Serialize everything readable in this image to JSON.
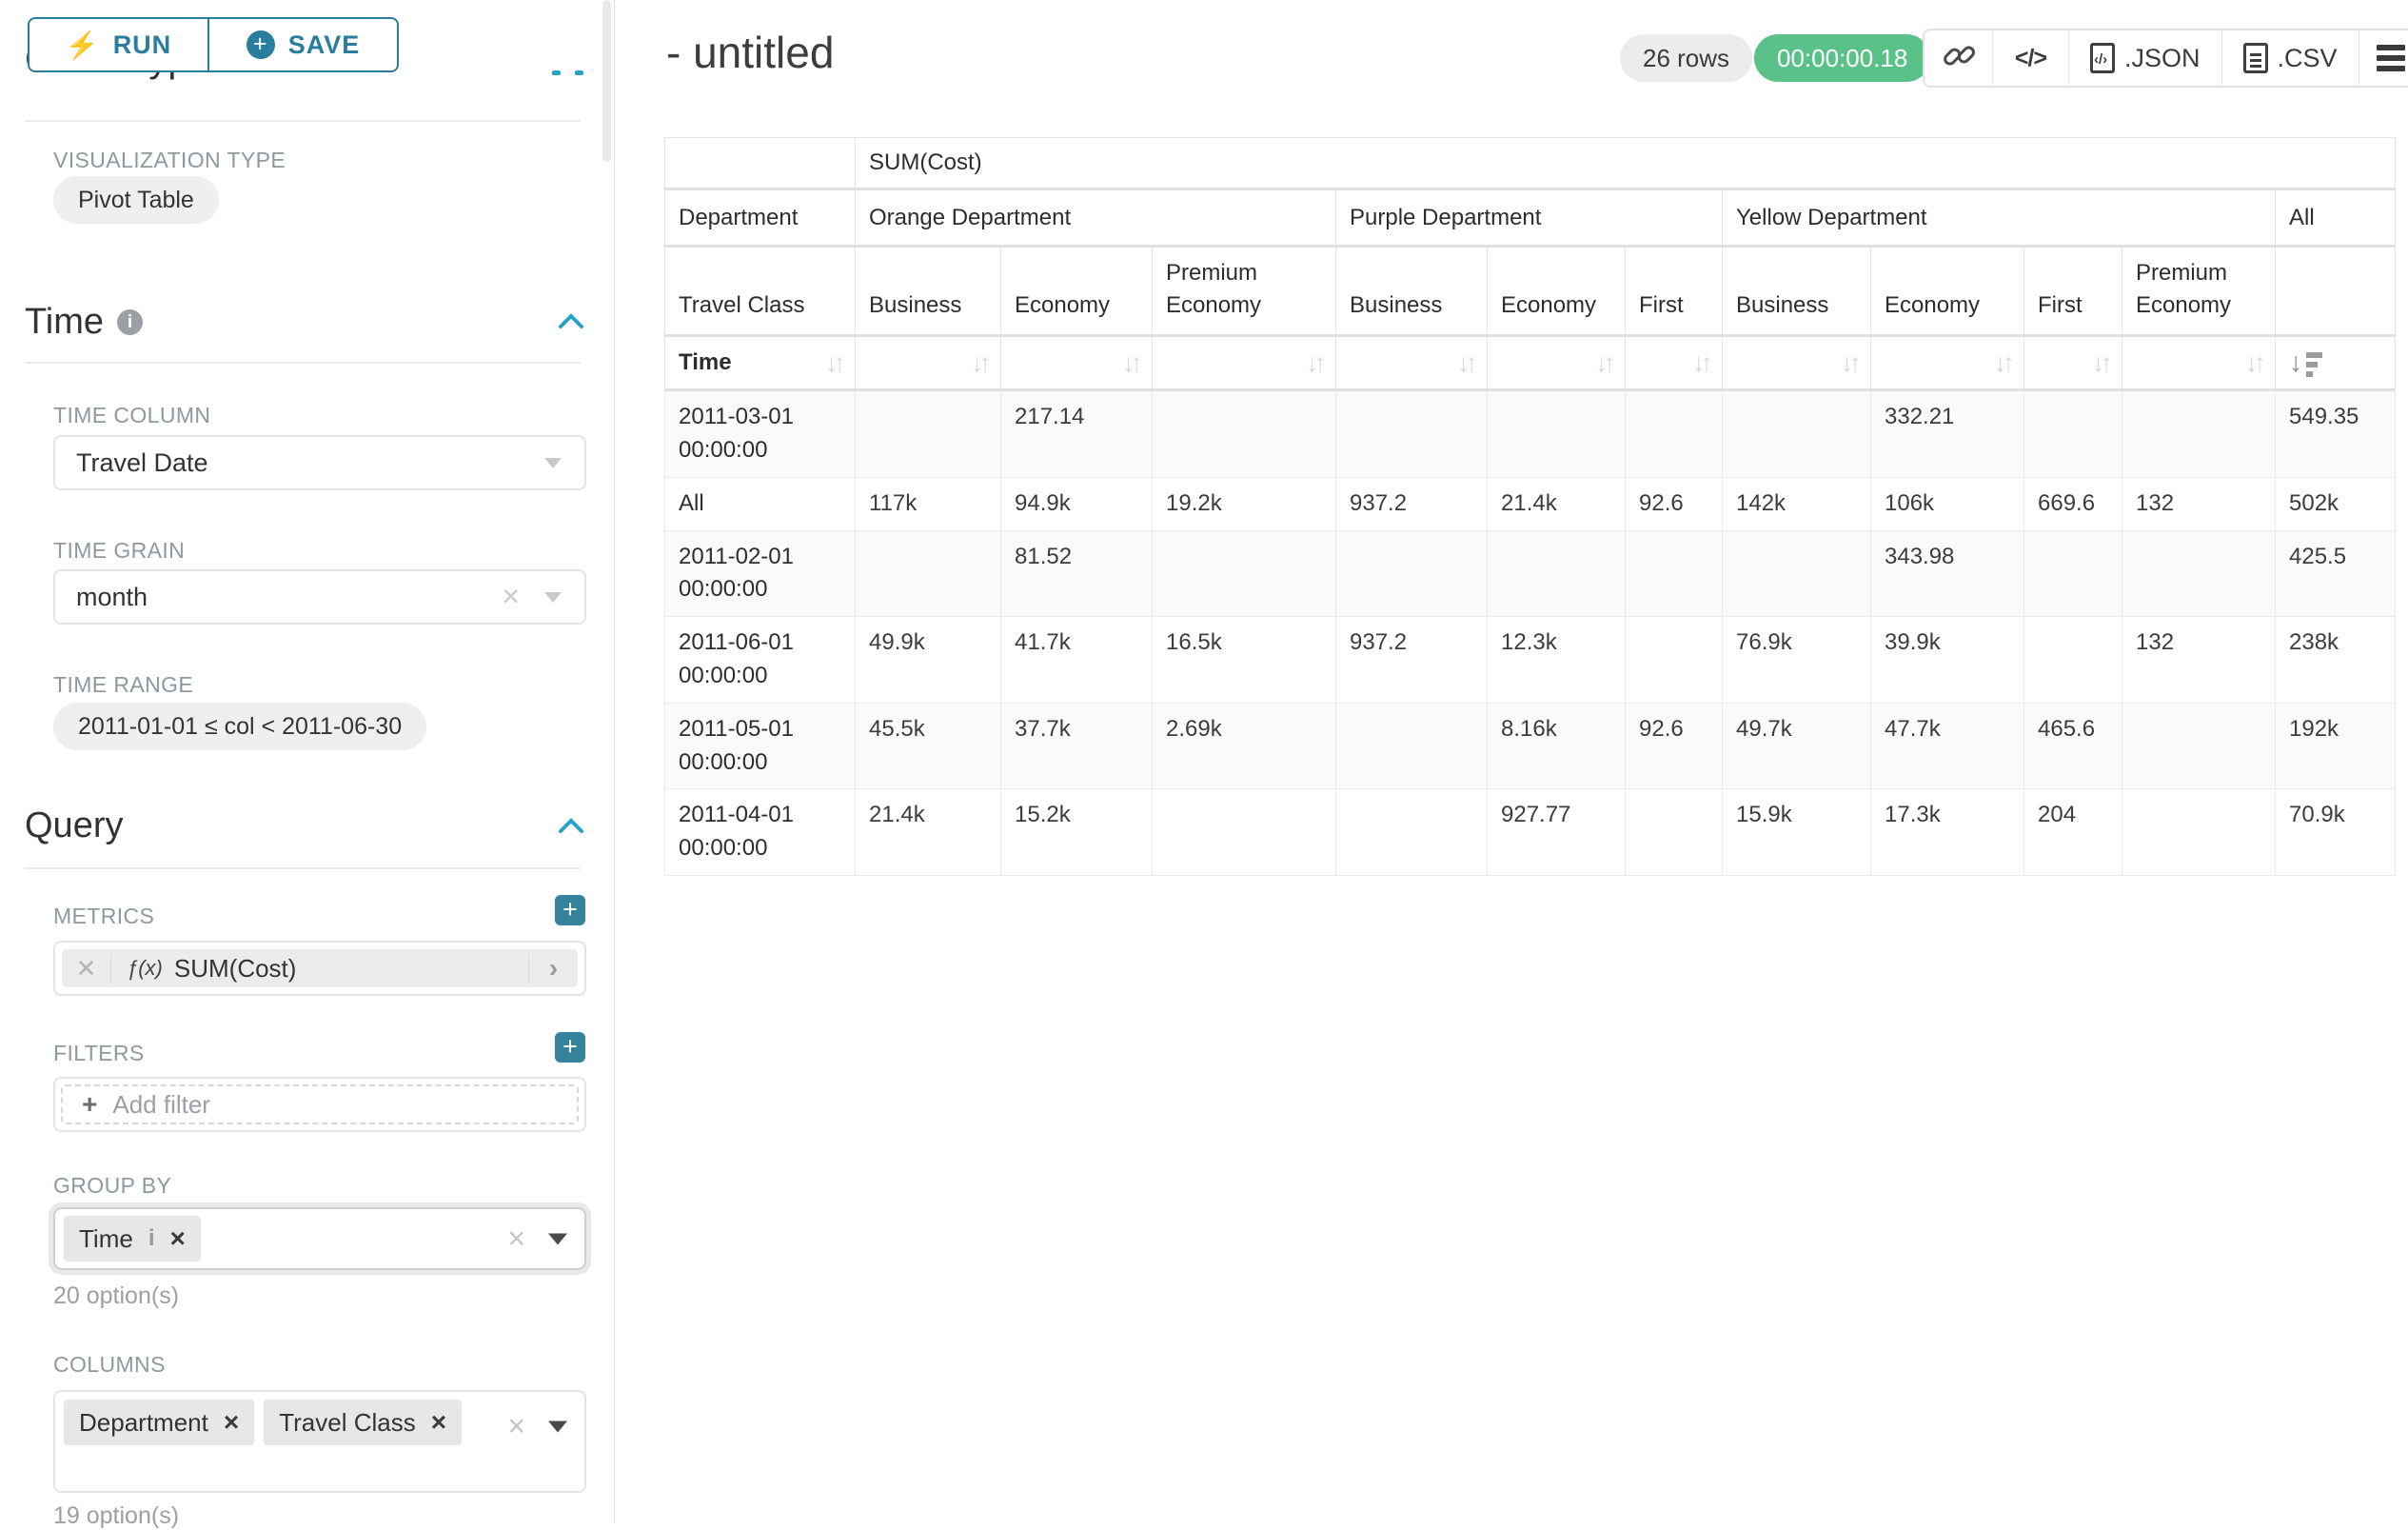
{
  "sidebar": {
    "run_label": "RUN",
    "save_label": "SAVE",
    "chart_type_heading": "Chart Type",
    "viz_type_label": "VISUALIZATION TYPE",
    "viz_type_value": "Pivot Table",
    "time_section": {
      "title": "Time",
      "time_column_label": "TIME COLUMN",
      "time_column_value": "Travel Date",
      "time_grain_label": "TIME GRAIN",
      "time_grain_value": "month",
      "time_range_label": "TIME RANGE",
      "time_range_value": "2011-01-01 ≤ col < 2011-06-30"
    },
    "query_section": {
      "title": "Query",
      "metrics_label": "METRICS",
      "metric_fx": "ƒ(x)",
      "metric_value": "SUM(Cost)",
      "filters_label": "FILTERS",
      "add_filter_label": "Add filter",
      "group_by_label": "GROUP BY",
      "group_by_values": [
        "Time"
      ],
      "group_by_hint": "20 option(s)",
      "columns_label": "COLUMNS",
      "columns_values": [
        "Department",
        "Travel Class"
      ],
      "columns_hint": "19 option(s)"
    }
  },
  "header": {
    "title": "- untitled",
    "rows_badge": "26 rows",
    "timer": "00:00:00.18",
    "json_label": ".JSON",
    "csv_label": ".CSV"
  },
  "table": {
    "metric_header": "SUM(Cost)",
    "corner_dept": "Department",
    "corner_class": "Travel Class",
    "corner_time": "Time",
    "all_label": "All",
    "groups": [
      {
        "label": "Orange Department",
        "cols": [
          "Business",
          "Economy",
          "Premium Economy"
        ]
      },
      {
        "label": "Purple Department",
        "cols": [
          "Business",
          "Economy",
          "First"
        ]
      },
      {
        "label": "Yellow Department",
        "cols": [
          "Business",
          "Economy",
          "First",
          "Premium Economy"
        ]
      }
    ],
    "rows": [
      {
        "label": "2011-03-01 00:00:00",
        "values": [
          "",
          "217.14",
          "",
          "",
          "",
          "",
          "",
          "332.21",
          "",
          "",
          "549.35"
        ]
      },
      {
        "label": "All",
        "values": [
          "117k",
          "94.9k",
          "19.2k",
          "937.2",
          "21.4k",
          "92.6",
          "142k",
          "106k",
          "669.6",
          "132",
          "502k"
        ]
      },
      {
        "label": "2011-02-01 00:00:00",
        "values": [
          "",
          "81.52",
          "",
          "",
          "",
          "",
          "",
          "343.98",
          "",
          "",
          "425.5"
        ]
      },
      {
        "label": "2011-06-01 00:00:00",
        "values": [
          "49.9k",
          "41.7k",
          "16.5k",
          "937.2",
          "12.3k",
          "",
          "76.9k",
          "39.9k",
          "",
          "132",
          "238k"
        ]
      },
      {
        "label": "2011-05-01 00:00:00",
        "values": [
          "45.5k",
          "37.7k",
          "2.69k",
          "",
          "8.16k",
          "92.6",
          "49.7k",
          "47.7k",
          "465.6",
          "",
          "192k"
        ]
      },
      {
        "label": "2011-04-01 00:00:00",
        "values": [
          "21.4k",
          "15.2k",
          "",
          "",
          "927.77",
          "",
          "15.9k",
          "17.3k",
          "204",
          "",
          "70.9k"
        ]
      }
    ]
  }
}
